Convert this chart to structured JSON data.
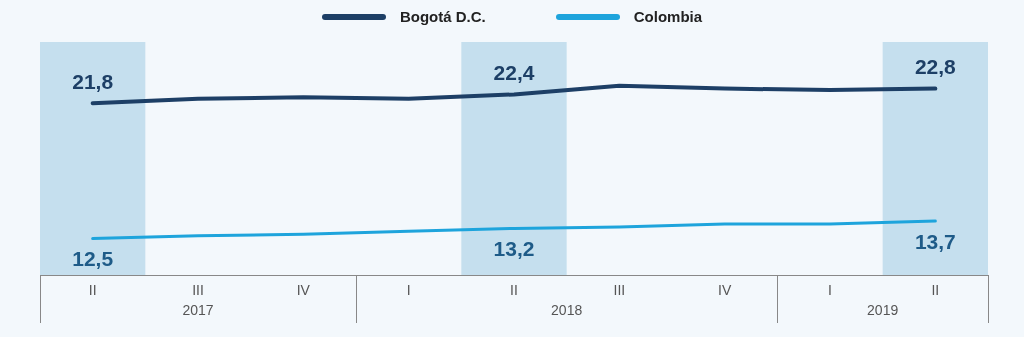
{
  "chart_data": {
    "type": "line",
    "categories": [
      "II",
      "III",
      "IV",
      "I",
      "II",
      "III",
      "IV",
      "I",
      "II"
    ],
    "series": [
      {
        "name": "Bogotá D.C.",
        "color": "#1d3f66",
        "values": [
          21.8,
          22.1,
          22.2,
          22.1,
          22.4,
          23.0,
          22.8,
          22.7,
          22.8
        ],
        "value_labels": [
          "21,8",
          null,
          null,
          null,
          "22,4",
          null,
          null,
          null,
          "22,8"
        ]
      },
      {
        "name": "Colombia",
        "color": "#1ea4dc",
        "values": [
          12.5,
          12.7,
          12.8,
          13.0,
          13.2,
          13.3,
          13.5,
          13.5,
          13.7
        ],
        "value_labels": [
          "12,5",
          null,
          null,
          null,
          "13,2",
          null,
          null,
          null,
          "13,7"
        ]
      }
    ],
    "annotations": [
      "2017",
      "2018",
      "2019"
    ],
    "legend": "top",
    "grid": false,
    "marker": "none",
    "line_style": "solid",
    "tick_labels": "x"
  }
}
